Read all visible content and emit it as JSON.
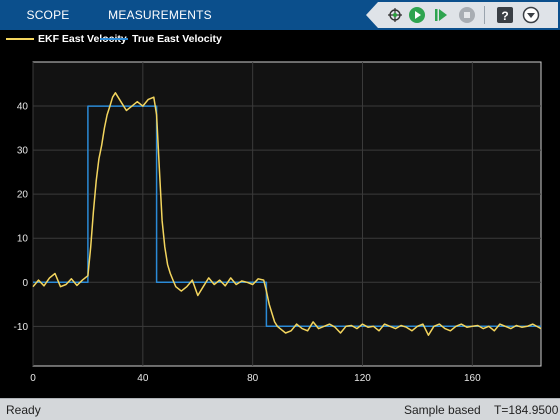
{
  "toolstrip": {
    "tabs": [
      {
        "label": "SCOPE"
      },
      {
        "label": "MEASUREMENTS"
      }
    ],
    "tools": [
      "signal-select-icon",
      "run-icon",
      "step-forward-icon",
      "stop-icon",
      "help-icon",
      "undock-icon"
    ]
  },
  "legend": {
    "items": [
      {
        "label": "EKF East Velocity",
        "color": "#f3d55e"
      },
      {
        "label": "True East Velocity",
        "color": "#2b8ad6"
      }
    ]
  },
  "chart_data": {
    "type": "line",
    "xlim": [
      0,
      185
    ],
    "ylim": [
      -19,
      50
    ],
    "xticks": [
      0,
      40,
      80,
      120,
      160
    ],
    "yticks": [
      -10,
      0,
      10,
      20,
      30,
      40
    ],
    "grid": true,
    "series": [
      {
        "name": "True East Velocity",
        "color": "#2b8ad6",
        "x": [
          0,
          20,
          20,
          45,
          45,
          85,
          85,
          185
        ],
        "y": [
          0,
          0,
          40,
          40,
          0,
          0,
          -10,
          -10
        ]
      },
      {
        "name": "EKF East Velocity",
        "color": "#f3d55e",
        "x": [
          0,
          2,
          4,
          6,
          8,
          10,
          12,
          14,
          16,
          18,
          20,
          21,
          22,
          23,
          24,
          25,
          26,
          27,
          28,
          29,
          30,
          32,
          34,
          36,
          38,
          40,
          42,
          44,
          45,
          46,
          47,
          48,
          49,
          50,
          51,
          52,
          54,
          56,
          58,
          60,
          62,
          64,
          66,
          68,
          70,
          72,
          74,
          76,
          78,
          80,
          82,
          84,
          85,
          86,
          87,
          88,
          89,
          90,
          92,
          94,
          96,
          98,
          100,
          102,
          104,
          106,
          108,
          110,
          112,
          114,
          116,
          118,
          120,
          122,
          124,
          126,
          128,
          130,
          132,
          134,
          136,
          138,
          140,
          142,
          144,
          146,
          148,
          150,
          152,
          154,
          156,
          158,
          160,
          162,
          164,
          166,
          168,
          170,
          172,
          174,
          176,
          178,
          180,
          182,
          185
        ],
        "y": [
          -1,
          0.5,
          -0.8,
          1,
          2,
          -1,
          -0.5,
          0.8,
          -0.7,
          0.5,
          1.5,
          8,
          16,
          23,
          28,
          31,
          35,
          38,
          40,
          42,
          43,
          41,
          39,
          40,
          41,
          40,
          41.5,
          42,
          38,
          26,
          14,
          8,
          4,
          2,
          0.5,
          -1,
          -2,
          -1,
          0.5,
          -3,
          -1,
          1,
          -0.5,
          0.5,
          -0.8,
          1,
          -0.5,
          0.3,
          0,
          -0.5,
          0.8,
          0.5,
          -2,
          -5,
          -7,
          -9,
          -10,
          -10.5,
          -11.5,
          -11,
          -9.5,
          -10.5,
          -11,
          -9,
          -10.5,
          -10,
          -9.5,
          -10.2,
          -11.5,
          -10,
          -9.8,
          -10.5,
          -9.5,
          -10.2,
          -10,
          -11,
          -9.5,
          -10,
          -10.5,
          -9.8,
          -10.2,
          -11,
          -10,
          -9.5,
          -12,
          -10,
          -9.5,
          -10.5,
          -11,
          -10,
          -9.5,
          -10.2,
          -10,
          -9.8,
          -10.5,
          -10,
          -11,
          -9.5,
          -10,
          -10.5,
          -9.8,
          -10.2,
          -10,
          -9.5,
          -10.5
        ]
      }
    ]
  },
  "status": {
    "ready": "Ready",
    "mode": "Sample based",
    "time": "T=184.9500"
  }
}
